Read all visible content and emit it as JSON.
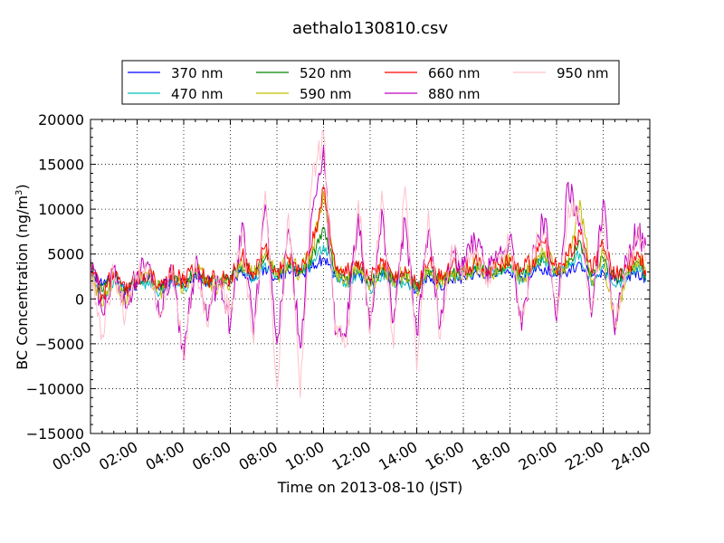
{
  "chart_data": {
    "type": "line",
    "title": "aethalo130810.csv",
    "xlabel": "Time on 2013-08-10 (JST)",
    "ylabel_main": "BC Concentration (ng/m",
    "ylabel_sup": "3",
    "ylabel_close": ")",
    "xlim": [
      "00:00",
      "24:00"
    ],
    "ylim": [
      -15000,
      20000
    ],
    "x_ticks": [
      "00:00",
      "02:00",
      "04:00",
      "06:00",
      "08:00",
      "10:00",
      "12:00",
      "14:00",
      "16:00",
      "18:00",
      "20:00",
      "22:00",
      "24:00"
    ],
    "y_ticks": [
      "20000",
      "15000",
      "10000",
      "5000",
      "0",
      "−5000",
      "−10000",
      "−15000"
    ],
    "y_tick_values": [
      20000,
      15000,
      10000,
      5000,
      0,
      -5000,
      -10000,
      -15000
    ],
    "grid": true,
    "legend": {
      "placement": "top-center",
      "columns": 4
    },
    "x": [
      "00:00",
      "00:30",
      "01:00",
      "01:30",
      "02:00",
      "02:30",
      "03:00",
      "03:30",
      "04:00",
      "04:30",
      "05:00",
      "05:30",
      "06:00",
      "06:30",
      "07:00",
      "07:30",
      "08:00",
      "08:30",
      "09:00",
      "09:30",
      "10:00",
      "10:30",
      "11:00",
      "11:30",
      "12:00",
      "12:30",
      "13:00",
      "13:30",
      "14:00",
      "14:30",
      "15:00",
      "15:30",
      "16:00",
      "16:30",
      "17:00",
      "17:30",
      "18:00",
      "18:30",
      "19:00",
      "19:30",
      "20:00",
      "20:30",
      "21:00",
      "21:30",
      "22:00",
      "22:30",
      "23:00",
      "23:30"
    ],
    "series": [
      {
        "name": "370 nm",
        "color": "#0000ff",
        "values": [
          3000,
          1500,
          2500,
          500,
          1800,
          2200,
          1000,
          2400,
          1500,
          2800,
          2000,
          1600,
          2000,
          3000,
          2500,
          3500,
          2200,
          3000,
          2800,
          3500,
          4500,
          2500,
          2000,
          2800,
          1500,
          2500,
          1800,
          2200,
          1000,
          2500,
          1500,
          2000,
          2500,
          3000,
          2800,
          3200,
          3000,
          2500,
          3000,
          3500,
          2500,
          3000,
          4000,
          2500,
          3000,
          2000,
          2500,
          3000
        ]
      },
      {
        "name": "470 nm",
        "color": "#00bfbf",
        "values": [
          2800,
          0,
          2000,
          1000,
          2500,
          1500,
          800,
          2000,
          1200,
          2500,
          1800,
          2200,
          2500,
          3500,
          2000,
          4000,
          2500,
          3500,
          3000,
          4000,
          6000,
          2800,
          1800,
          3000,
          1000,
          2800,
          2000,
          1500,
          1200,
          2800,
          1800,
          2500,
          2800,
          3200,
          3500,
          2800,
          3500,
          2000,
          3500,
          4200,
          2800,
          3500,
          5000,
          1500,
          3500,
          1500,
          2000,
          3500
        ]
      },
      {
        "name": "520 nm",
        "color": "#008000",
        "values": [
          3500,
          800,
          2800,
          600,
          2200,
          2500,
          1200,
          2600,
          1600,
          3000,
          2200,
          1800,
          2200,
          3800,
          2800,
          4500,
          2800,
          3800,
          3200,
          4500,
          8000,
          3000,
          2500,
          3500,
          1800,
          3200,
          2200,
          2800,
          1200,
          3200,
          2000,
          2800,
          3000,
          3600,
          3200,
          3000,
          3800,
          2800,
          3600,
          4800,
          3000,
          3800,
          6500,
          2500,
          4500,
          2200,
          3000,
          4000
        ]
      },
      {
        "name": "590 nm",
        "color": "#bfbf00",
        "values": [
          3200,
          -800,
          2600,
          -500,
          2000,
          2800,
          900,
          2200,
          1400,
          3200,
          1900,
          1500,
          1800,
          4200,
          2400,
          5000,
          2600,
          4200,
          2900,
          5200,
          12000,
          3300,
          2200,
          3800,
          1500,
          3500,
          1900,
          3000,
          900,
          3500,
          1700,
          3100,
          2700,
          3900,
          2900,
          3300,
          4100,
          2300,
          3900,
          5300,
          2700,
          4200,
          11000,
          2000,
          5000,
          -3000,
          2600,
          4500
        ]
      },
      {
        "name": "660 nm",
        "color": "#ff0000",
        "values": [
          3800,
          500,
          3000,
          800,
          2400,
          3000,
          1400,
          2800,
          1800,
          3400,
          2400,
          2000,
          2400,
          4800,
          3000,
          5800,
          3000,
          4600,
          3400,
          5800,
          12500,
          3600,
          2800,
          4200,
          2000,
          4200,
          2400,
          3600,
          1400,
          4000,
          2200,
          3600,
          3200,
          4400,
          3400,
          3800,
          4600,
          3000,
          4400,
          6200,
          3200,
          4800,
          7500,
          3000,
          5800,
          2400,
          3400,
          5200
        ]
      },
      {
        "name": "880 nm",
        "color": "#bf00bf",
        "values": [
          4500,
          -1500,
          3500,
          -1000,
          3000,
          3800,
          -2000,
          3500,
          -6800,
          4200,
          -2500,
          2200,
          -3000,
          8500,
          -4000,
          10500,
          -5000,
          7800,
          -5500,
          9500,
          17000,
          -4000,
          -3000,
          9500,
          -3500,
          10000,
          -2500,
          9000,
          -4000,
          7500,
          -3000,
          5500,
          3500,
          6500,
          3000,
          5000,
          7000,
          -3500,
          6000,
          9000,
          -2500,
          13000,
          8500,
          -2000,
          11000,
          -4000,
          4500,
          8000
        ]
      },
      {
        "name": "950 nm",
        "color": "#ffc0cb",
        "values": [
          4000,
          -4000,
          3200,
          -2000,
          2600,
          3500,
          -1500,
          3800,
          -6500,
          4600,
          -3000,
          2500,
          -2000,
          7500,
          -5000,
          12000,
          -10000,
          9500,
          -11000,
          13000,
          18500,
          -3500,
          -5000,
          11000,
          -4000,
          12000,
          -5500,
          12500,
          -8000,
          10000,
          -4500,
          6000,
          3000,
          5500,
          2500,
          4500,
          6500,
          -2500,
          5500,
          7500,
          -2000,
          10500,
          9000,
          -1500,
          9500,
          -3000,
          3500,
          7000
        ]
      }
    ]
  }
}
